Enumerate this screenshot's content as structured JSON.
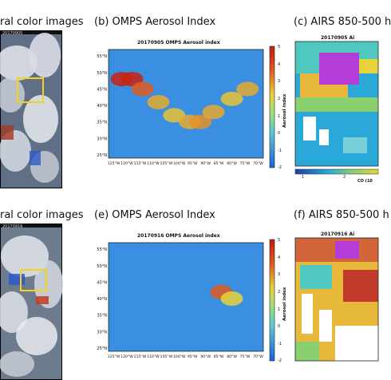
{
  "row1": {
    "panel_a_heading": "ral color images",
    "panel_a_stamp": "20170905",
    "panel_b_heading": "(b) OMPS Aerosol Index",
    "panel_c_heading": "(c) AIRS 850-500 h",
    "panel_b_map_title": "20170905 OMPS Aerosol index",
    "panel_c_map_title": "20170905 Ai"
  },
  "row2": {
    "panel_d_heading": "ral color images",
    "panel_d_stamp": "20170916",
    "panel_e_heading": "(e) OMPS Aerosol Index",
    "panel_f_heading": "(f) AIRS 850-500 h",
    "panel_e_map_title": "20170916 OMPS Aerosol index",
    "panel_f_map_title": "20170916 Ai"
  },
  "colorbar": {
    "label": "Aerosol index",
    "ticks": [
      "5",
      "4",
      "3",
      "2",
      "1",
      "0",
      "-1",
      "-2"
    ],
    "co_ticks": [
      "1",
      "2"
    ],
    "co_label": "CO (10"
  },
  "colors": {
    "low": "#1f5fd8",
    "mid": "#55c7d8",
    "high": "#e8d23a",
    "max": "#c41b10",
    "airs_max": "#b43cd8",
    "box": "#f2d21b"
  },
  "chart_data": [
    {
      "type": "heatmap",
      "title": "20170905 OMPS Aerosol index",
      "x_ticks": [
        "125°W",
        "120°W",
        "115°W",
        "110°W",
        "105°W",
        "100°W",
        "95°W",
        "90°W",
        "85°W",
        "80°W",
        "75°W",
        "70°W"
      ],
      "y_ticks": [
        "55°N",
        "50°N",
        "45°N",
        "40°N",
        "35°N",
        "30°N",
        "25°N"
      ],
      "zlabel": "Aerosol index",
      "zlim": [
        -2,
        5
      ],
      "plume": [
        {
          "lon": -122,
          "lat": 48,
          "ai": 4.8
        },
        {
          "lon": -118,
          "lat": 48,
          "ai": 4.8
        },
        {
          "lon": -114,
          "lat": 45,
          "ai": 3.5
        },
        {
          "lon": -108,
          "lat": 41,
          "ai": 2.5
        },
        {
          "lon": -102,
          "lat": 37,
          "ai": 2.2
        },
        {
          "lon": -96,
          "lat": 35,
          "ai": 2.5
        },
        {
          "lon": -92,
          "lat": 35,
          "ai": 2.8
        },
        {
          "lon": -87,
          "lat": 38,
          "ai": 2.5
        },
        {
          "lon": -80,
          "lat": 42,
          "ai": 2.2
        },
        {
          "lon": -74,
          "lat": 45,
          "ai": 2.5
        }
      ]
    },
    {
      "type": "heatmap",
      "title": "20170916 OMPS Aerosol index",
      "x_ticks": [
        "125°W",
        "120°W",
        "115°W",
        "110°W",
        "105°W",
        "100°W",
        "95°W",
        "90°W",
        "85°W",
        "80°W",
        "75°W",
        "70°W"
      ],
      "y_ticks": [
        "55°N",
        "50°N",
        "45°N",
        "40°N",
        "35°N",
        "30°N",
        "25°N"
      ],
      "zlabel": "Aerosol index",
      "zlim": [
        -2,
        5
      ],
      "plume": [
        {
          "lon": -84,
          "lat": 42,
          "ai": 3.5
        },
        {
          "lon": -80,
          "lat": 40,
          "ai": 2.0
        }
      ]
    }
  ]
}
